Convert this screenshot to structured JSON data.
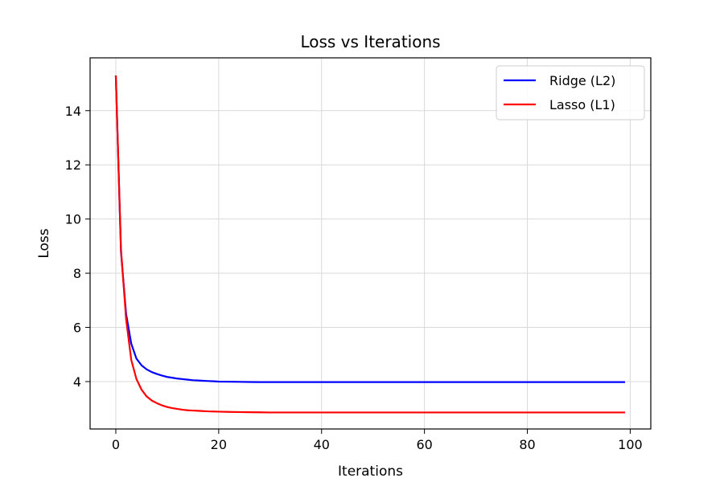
{
  "chart_data": {
    "type": "line",
    "title": "Loss vs Iterations",
    "xlabel": "Iterations",
    "ylabel": "Loss",
    "xlim": [
      -5,
      104
    ],
    "ylim": [
      2.25,
      15.95
    ],
    "xticks": [
      0,
      20,
      40,
      60,
      80,
      100
    ],
    "yticks": [
      4,
      6,
      8,
      10,
      12,
      14
    ],
    "grid": true,
    "legend_position": "top-right",
    "series": [
      {
        "name": "Ridge (L2)",
        "color": "#0000ff",
        "x": [
          0,
          1,
          2,
          3,
          4,
          5,
          6,
          7,
          8,
          9,
          10,
          11,
          12,
          13,
          14,
          15,
          16,
          17,
          18,
          19,
          20,
          22,
          24,
          26,
          28,
          30,
          35,
          40,
          50,
          60,
          70,
          80,
          90,
          99
        ],
        "y": [
          15.3,
          8.8,
          6.5,
          5.4,
          4.85,
          4.6,
          4.45,
          4.35,
          4.28,
          4.22,
          4.17,
          4.14,
          4.11,
          4.09,
          4.07,
          4.05,
          4.04,
          4.03,
          4.02,
          4.01,
          4.0,
          3.995,
          3.99,
          3.985,
          3.982,
          3.98,
          3.98,
          3.98,
          3.98,
          3.98,
          3.98,
          3.98,
          3.98,
          3.98
        ]
      },
      {
        "name": "Lasso (L1)",
        "color": "#ff0000",
        "x": [
          0,
          1,
          2,
          3,
          4,
          5,
          6,
          7,
          8,
          9,
          10,
          11,
          12,
          13,
          14,
          15,
          16,
          17,
          18,
          19,
          20,
          22,
          24,
          26,
          28,
          30,
          35,
          40,
          50,
          60,
          70,
          80,
          90,
          99
        ],
        "y": [
          15.3,
          8.9,
          6.3,
          4.8,
          4.1,
          3.7,
          3.45,
          3.3,
          3.2,
          3.12,
          3.06,
          3.02,
          2.99,
          2.96,
          2.94,
          2.93,
          2.92,
          2.91,
          2.9,
          2.895,
          2.89,
          2.88,
          2.875,
          2.87,
          2.865,
          2.86,
          2.86,
          2.86,
          2.86,
          2.86,
          2.86,
          2.86,
          2.86,
          2.86
        ]
      }
    ]
  }
}
